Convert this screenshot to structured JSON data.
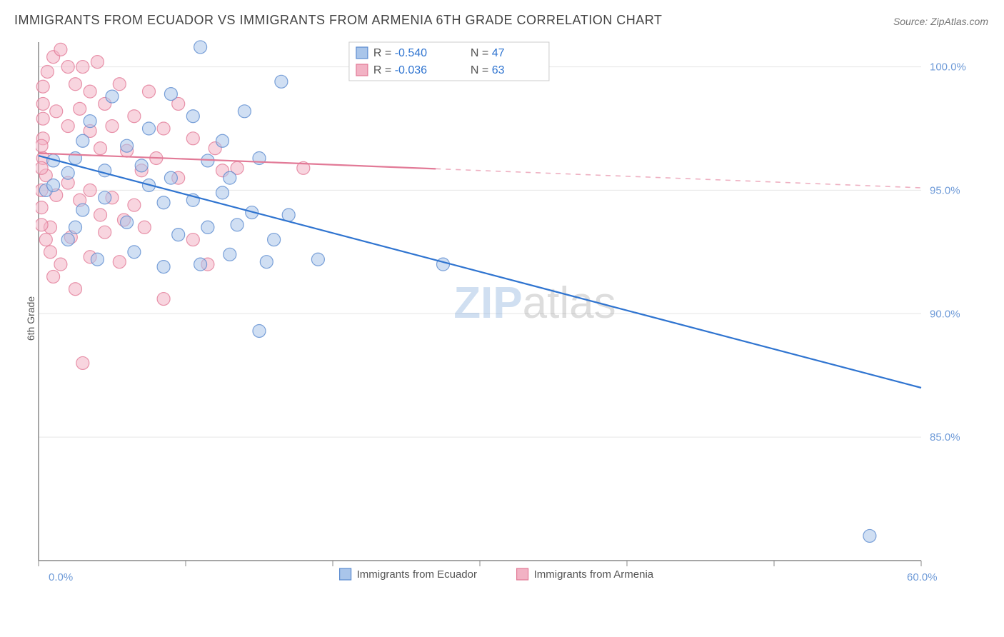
{
  "title": "IMMIGRANTS FROM ECUADOR VS IMMIGRANTS FROM ARMENIA 6TH GRADE CORRELATION CHART",
  "source": "Source: ZipAtlas.com",
  "ylabel": "6th Grade",
  "watermark": {
    "part1": "ZIP",
    "part2": "atlas"
  },
  "chart": {
    "type": "scatter-with-regression",
    "background_color": "#ffffff",
    "grid_color": "#e6e6e6",
    "axis_color": "#888888",
    "xlim": [
      0,
      60
    ],
    "ylim": [
      80,
      101
    ],
    "xticks": [
      0,
      10,
      20,
      30,
      40,
      50,
      60
    ],
    "xtick_labels": [
      "0.0%",
      "",
      "",
      "",
      "",
      "",
      "60.0%"
    ],
    "yticks": [
      85,
      90,
      95,
      100
    ],
    "ytick_labels": [
      "85.0%",
      "90.0%",
      "95.0%",
      "100.0%"
    ],
    "marker_radius": 9,
    "marker_opacity": 0.55,
    "line_width": 2.2,
    "series": [
      {
        "name": "Immigrants from Ecuador",
        "color": "#6f9bd8",
        "fill": "#a9c5ea",
        "stroke": "#5b8bd0",
        "R": "-0.540",
        "N": "47",
        "regression": {
          "x0": 0,
          "y0": 96.4,
          "x1": 60,
          "y1": 87.0,
          "solid_until_x": null
        },
        "points": [
          [
            2.5,
            96.3
          ],
          [
            1.0,
            96.2
          ],
          [
            3.5,
            97.8
          ],
          [
            5.0,
            98.8
          ],
          [
            7.5,
            97.5
          ],
          [
            9.0,
            98.9
          ],
          [
            10.5,
            98.0
          ],
          [
            11.0,
            100.8
          ],
          [
            12.5,
            97.0
          ],
          [
            14.0,
            98.2
          ],
          [
            15.0,
            96.3
          ],
          [
            16.5,
            99.4
          ],
          [
            3.0,
            94.2
          ],
          [
            4.5,
            94.7
          ],
          [
            6.0,
            93.7
          ],
          [
            7.5,
            95.2
          ],
          [
            8.5,
            94.5
          ],
          [
            9.5,
            93.2
          ],
          [
            10.5,
            94.6
          ],
          [
            11.5,
            93.5
          ],
          [
            12.5,
            94.9
          ],
          [
            13.5,
            93.6
          ],
          [
            14.5,
            94.1
          ],
          [
            16.0,
            93.0
          ],
          [
            17.0,
            94.0
          ],
          [
            2.0,
            93.0
          ],
          [
            4.0,
            92.2
          ],
          [
            6.5,
            92.5
          ],
          [
            8.5,
            91.9
          ],
          [
            11.0,
            92.0
          ],
          [
            13.0,
            92.4
          ],
          [
            15.5,
            92.1
          ],
          [
            19.0,
            92.2
          ],
          [
            15.0,
            89.3
          ],
          [
            27.5,
            92.0
          ],
          [
            7.0,
            96.0
          ],
          [
            9.0,
            95.5
          ],
          [
            11.5,
            96.2
          ],
          [
            13.0,
            95.5
          ],
          [
            0.5,
            95.0
          ],
          [
            2.0,
            95.7
          ],
          [
            3.0,
            97.0
          ],
          [
            4.5,
            95.8
          ],
          [
            6.0,
            96.8
          ],
          [
            1.0,
            95.2
          ],
          [
            2.5,
            93.5
          ],
          [
            56.5,
            81.0
          ]
        ]
      },
      {
        "name": "Immigrants from Armenia",
        "color": "#e78fa8",
        "fill": "#f2b2c4",
        "stroke": "#e27a97",
        "R": "-0.036",
        "N": "63",
        "regression": {
          "x0": 0,
          "y0": 96.5,
          "x1": 60,
          "y1": 95.1,
          "solid_until_x": 27
        },
        "points": [
          [
            0.3,
            96.3
          ],
          [
            0.3,
            97.1
          ],
          [
            0.3,
            97.9
          ],
          [
            0.3,
            98.5
          ],
          [
            0.3,
            99.2
          ],
          [
            0.6,
            99.8
          ],
          [
            1.0,
            100.4
          ],
          [
            1.5,
            100.7
          ],
          [
            2.0,
            100.0
          ],
          [
            2.5,
            99.3
          ],
          [
            3.0,
            100.0
          ],
          [
            3.5,
            99.0
          ],
          [
            4.0,
            100.2
          ],
          [
            4.5,
            98.5
          ],
          [
            5.5,
            99.3
          ],
          [
            6.5,
            98.0
          ],
          [
            7.5,
            99.0
          ],
          [
            8.5,
            97.5
          ],
          [
            9.5,
            98.5
          ],
          [
            10.5,
            97.1
          ],
          [
            1.2,
            98.2
          ],
          [
            2.0,
            97.6
          ],
          [
            2.8,
            98.3
          ],
          [
            3.5,
            97.4
          ],
          [
            4.2,
            96.7
          ],
          [
            0.5,
            95.6
          ],
          [
            1.2,
            94.8
          ],
          [
            2.0,
            95.3
          ],
          [
            2.8,
            94.6
          ],
          [
            3.5,
            95.0
          ],
          [
            4.2,
            94.0
          ],
          [
            5.0,
            94.7
          ],
          [
            5.8,
            93.8
          ],
          [
            6.5,
            94.4
          ],
          [
            7.2,
            93.5
          ],
          [
            0.8,
            93.5
          ],
          [
            2.2,
            93.1
          ],
          [
            3.5,
            92.3
          ],
          [
            4.5,
            93.3
          ],
          [
            5.5,
            92.1
          ],
          [
            1.5,
            92.0
          ],
          [
            1.0,
            91.5
          ],
          [
            2.5,
            91.0
          ],
          [
            3.0,
            88.0
          ],
          [
            8.5,
            90.6
          ],
          [
            12.0,
            96.7
          ],
          [
            12.5,
            95.8
          ],
          [
            13.5,
            95.9
          ],
          [
            11.5,
            92.0
          ],
          [
            10.5,
            93.0
          ],
          [
            9.5,
            95.5
          ],
          [
            5.0,
            97.6
          ],
          [
            6.0,
            96.6
          ],
          [
            7.0,
            95.8
          ],
          [
            8.0,
            96.3
          ],
          [
            0.2,
            96.8
          ],
          [
            0.2,
            95.9
          ],
          [
            0.2,
            95.0
          ],
          [
            0.2,
            94.3
          ],
          [
            0.2,
            93.6
          ],
          [
            0.5,
            93.0
          ],
          [
            0.8,
            92.5
          ],
          [
            18.0,
            95.9
          ]
        ]
      }
    ],
    "legend": {
      "series_swatch_size": 16
    },
    "stats_box": {
      "border_color": "#cccccc",
      "background": "#ffffff"
    }
  }
}
